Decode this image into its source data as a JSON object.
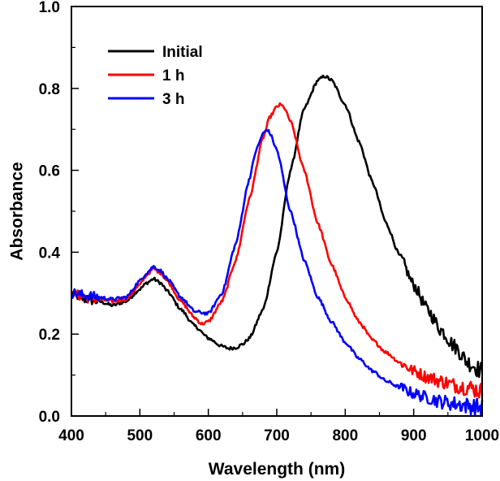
{
  "chart_data": {
    "type": "line",
    "title": "",
    "xlabel": "Wavelength (nm)",
    "ylabel": "Absorbance",
    "xlim": [
      400,
      1000
    ],
    "ylim": [
      0.0,
      1.0
    ],
    "x_ticks": [
      400,
      500,
      600,
      700,
      800,
      900,
      1000
    ],
    "x_tick_labels": [
      "400",
      "500",
      "600",
      "700",
      "800",
      "900",
      "1000"
    ],
    "x_minor_step": 50,
    "y_ticks": [
      0.0,
      0.2,
      0.4,
      0.6,
      0.8,
      1.0
    ],
    "y_tick_labels": [
      "0.0",
      "0.2",
      "0.4",
      "0.6",
      "0.8",
      "1.0"
    ],
    "y_minor_step": 0.1,
    "grid": false,
    "legend_position": "top-left",
    "series": [
      {
        "name": "Initial",
        "color": "#000000",
        "x": [
          400,
          420,
          440,
          460,
          480,
          500,
          510,
          520,
          530,
          540,
          560,
          580,
          600,
          620,
          630,
          640,
          650,
          660,
          680,
          700,
          720,
          740,
          760,
          770,
          780,
          800,
          820,
          840,
          860,
          880,
          900,
          920,
          940,
          960,
          980,
          1000
        ],
        "y": [
          0.3,
          0.285,
          0.28,
          0.27,
          0.28,
          0.31,
          0.325,
          0.335,
          0.325,
          0.305,
          0.26,
          0.22,
          0.19,
          0.17,
          0.165,
          0.167,
          0.175,
          0.19,
          0.26,
          0.4,
          0.6,
          0.75,
          0.82,
          0.83,
          0.82,
          0.76,
          0.67,
          0.57,
          0.47,
          0.39,
          0.32,
          0.26,
          0.21,
          0.17,
          0.13,
          0.11
        ]
      },
      {
        "name": "1 h",
        "color": "#ff0000",
        "x": [
          400,
          420,
          440,
          460,
          480,
          500,
          510,
          520,
          530,
          540,
          560,
          580,
          590,
          600,
          620,
          640,
          660,
          680,
          690,
          700,
          705,
          710,
          720,
          740,
          760,
          780,
          800,
          820,
          840,
          860,
          880,
          900,
          920,
          940,
          960,
          980,
          1000
        ],
        "y": [
          0.3,
          0.29,
          0.285,
          0.28,
          0.285,
          0.32,
          0.345,
          0.36,
          0.35,
          0.33,
          0.28,
          0.24,
          0.225,
          0.23,
          0.28,
          0.38,
          0.53,
          0.68,
          0.73,
          0.755,
          0.76,
          0.755,
          0.72,
          0.6,
          0.47,
          0.37,
          0.29,
          0.23,
          0.185,
          0.155,
          0.13,
          0.11,
          0.095,
          0.085,
          0.075,
          0.07,
          0.06
        ]
      },
      {
        "name": "3 h",
        "color": "#0000ff",
        "x": [
          400,
          420,
          440,
          460,
          480,
          500,
          510,
          520,
          530,
          540,
          560,
          580,
          600,
          620,
          640,
          660,
          670,
          680,
          686,
          690,
          700,
          720,
          740,
          760,
          780,
          800,
          820,
          840,
          860,
          880,
          900,
          920,
          940,
          960,
          980,
          1000
        ],
        "y": [
          0.3,
          0.295,
          0.29,
          0.285,
          0.29,
          0.33,
          0.35,
          0.365,
          0.355,
          0.335,
          0.29,
          0.255,
          0.25,
          0.3,
          0.42,
          0.58,
          0.65,
          0.69,
          0.7,
          0.69,
          0.65,
          0.5,
          0.38,
          0.29,
          0.23,
          0.18,
          0.14,
          0.11,
          0.085,
          0.07,
          0.055,
          0.045,
          0.035,
          0.03,
          0.025,
          0.02
        ]
      }
    ]
  }
}
